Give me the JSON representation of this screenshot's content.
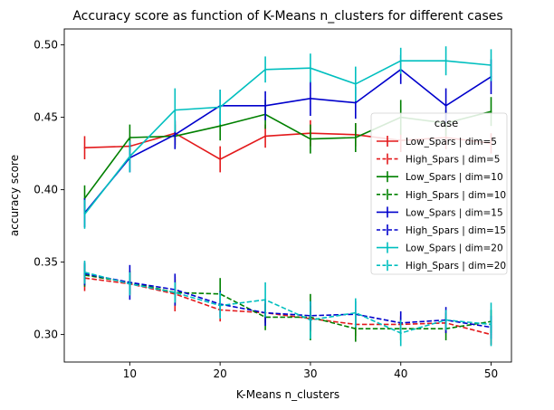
{
  "chart_data": {
    "type": "line",
    "title": "Accuracy score as function of K-Means n_clusters for different cases",
    "xlabel": "K-Means n_clusters",
    "ylabel": "accuracy score",
    "xlim": [
      2.75,
      52.25
    ],
    "ylim": [
      0.281,
      0.511
    ],
    "xticks": [
      10,
      20,
      30,
      40,
      50
    ],
    "yticks": [
      0.3,
      0.35,
      0.4,
      0.45,
      0.5
    ],
    "xtick_labels": [
      "10",
      "20",
      "30",
      "40",
      "50"
    ],
    "ytick_labels": [
      "0.30",
      "0.35",
      "0.40",
      "0.45",
      "0.50"
    ],
    "grid": false,
    "legend_title": "case",
    "legend_position": "center-right",
    "x": [
      5,
      10,
      15,
      20,
      25,
      30,
      35,
      40,
      45,
      50
    ],
    "series": [
      {
        "name": "Low_Spars | dim=5",
        "color": "#e31a1c",
        "dash": false,
        "values": [
          0.429,
          0.43,
          0.439,
          0.421,
          0.437,
          0.439,
          0.438,
          0.434,
          0.436,
          0.432
        ],
        "errors": [
          0.008,
          0.007,
          0.008,
          0.009,
          0.008,
          0.009,
          0.008,
          0.008,
          0.008,
          0.007
        ]
      },
      {
        "name": "High_Spars | dim=5",
        "color": "#e31a1c",
        "dash": true,
        "values": [
          0.339,
          0.335,
          0.328,
          0.317,
          0.315,
          0.311,
          0.307,
          0.307,
          0.308,
          0.3
        ],
        "errors": [
          0.009,
          0.008,
          0.012,
          0.008,
          0.007,
          0.009,
          0.008,
          0.006,
          0.007,
          0.007
        ]
      },
      {
        "name": "Low_Spars | dim=10",
        "color": "#008000",
        "dash": false,
        "values": [
          0.394,
          0.436,
          0.437,
          0.444,
          0.452,
          0.435,
          0.436,
          0.45,
          0.446,
          0.454
        ],
        "errors": [
          0.009,
          0.009,
          0.008,
          0.01,
          0.01,
          0.01,
          0.01,
          0.012,
          0.009,
          0.01
        ]
      },
      {
        "name": "High_Spars | dim=10",
        "color": "#008000",
        "dash": true,
        "values": [
          0.341,
          0.336,
          0.329,
          0.328,
          0.312,
          0.312,
          0.304,
          0.304,
          0.304,
          0.309
        ],
        "errors": [
          0.008,
          0.008,
          0.009,
          0.011,
          0.009,
          0.016,
          0.009,
          0.008,
          0.008,
          0.008
        ]
      },
      {
        "name": "Low_Spars | dim=15",
        "color": "#0000cc",
        "dash": false,
        "values": [
          0.384,
          0.422,
          0.438,
          0.458,
          0.458,
          0.463,
          0.46,
          0.483,
          0.458,
          0.478
        ],
        "errors": [
          0.01,
          0.01,
          0.01,
          0.011,
          0.01,
          0.012,
          0.011,
          0.01,
          0.012,
          0.012
        ]
      },
      {
        "name": "High_Spars | dim=15",
        "color": "#0000cc",
        "dash": true,
        "values": [
          0.342,
          0.336,
          0.331,
          0.321,
          0.315,
          0.313,
          0.314,
          0.308,
          0.31,
          0.305
        ],
        "errors": [
          0.008,
          0.012,
          0.011,
          0.009,
          0.009,
          0.01,
          0.009,
          0.008,
          0.009,
          0.008
        ]
      },
      {
        "name": "Low_Spars | dim=20",
        "color": "#00bfbf",
        "dash": false,
        "values": [
          0.383,
          0.423,
          0.455,
          0.457,
          0.483,
          0.484,
          0.473,
          0.489,
          0.489,
          0.486
        ],
        "errors": [
          0.01,
          0.011,
          0.015,
          0.012,
          0.009,
          0.01,
          0.012,
          0.009,
          0.01,
          0.011
        ]
      },
      {
        "name": "High_Spars | dim=20",
        "color": "#00bfbf",
        "dash": true,
        "values": [
          0.343,
          0.335,
          0.329,
          0.32,
          0.324,
          0.31,
          0.315,
          0.301,
          0.31,
          0.307
        ],
        "errors": [
          0.008,
          0.008,
          0.007,
          0.009,
          0.012,
          0.013,
          0.01,
          0.009,
          0.007,
          0.015
        ]
      }
    ]
  }
}
